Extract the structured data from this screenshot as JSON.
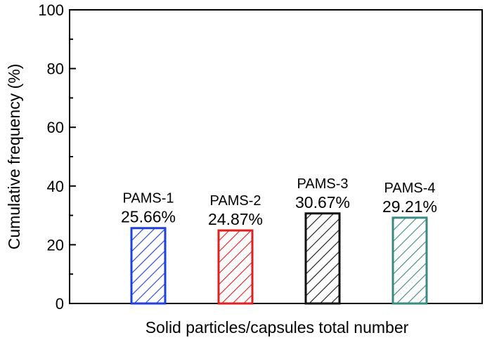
{
  "chart_data": {
    "type": "bar",
    "categories": [
      "PAMS-1",
      "PAMS-2",
      "PAMS-3",
      "PAMS-4"
    ],
    "values": [
      25.66,
      24.87,
      30.67,
      29.21
    ],
    "value_labels": [
      "25.66%",
      "24.87%",
      "30.67%",
      "29.21%"
    ],
    "colors": [
      "#1f3fe0",
      "#e01f1f",
      "#111111",
      "#3a8a82"
    ],
    "fill": "diagonal-hatch",
    "xlabel": "Solid particles/capsules total number",
    "ylabel": "Cumulative frequency (%)",
    "ylim": [
      0,
      100
    ],
    "yticks": [
      "0",
      "20",
      "40",
      "60",
      "80",
      "100"
    ],
    "grid": false
  }
}
